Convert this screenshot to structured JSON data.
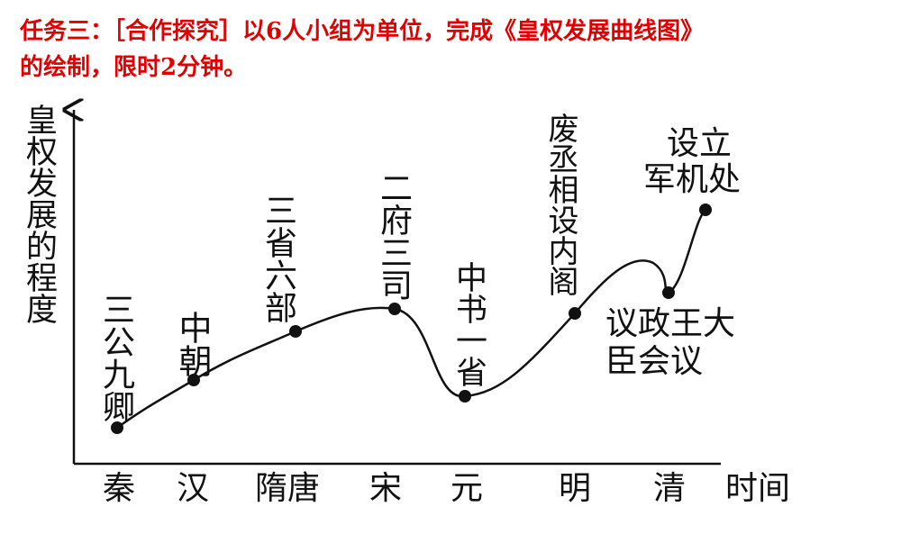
{
  "header": {
    "lines": [
      "任务三：［合作探究］以6人小组为单位，完成《皇权发展曲线图》",
      "的绘制，限时2分钟。"
    ]
  },
  "diagram": {
    "y_axis_label": "皇权发展的程度",
    "x_axis_label": "时间",
    "periods": [
      "秦",
      "汉",
      "隋唐",
      "宋",
      "元",
      "明",
      "清"
    ],
    "points": [
      {
        "label": "三公九卿"
      },
      {
        "label": "中朝"
      },
      {
        "label": "三省六部"
      },
      {
        "label": "二府三司"
      },
      {
        "label": "中书一省"
      },
      {
        "label": "废丞相设内阁"
      },
      {
        "label_lines": [
          "议政王大",
          "臣会议"
        ]
      },
      {
        "label_lines": [
          "设立",
          "军机处"
        ]
      }
    ]
  }
}
